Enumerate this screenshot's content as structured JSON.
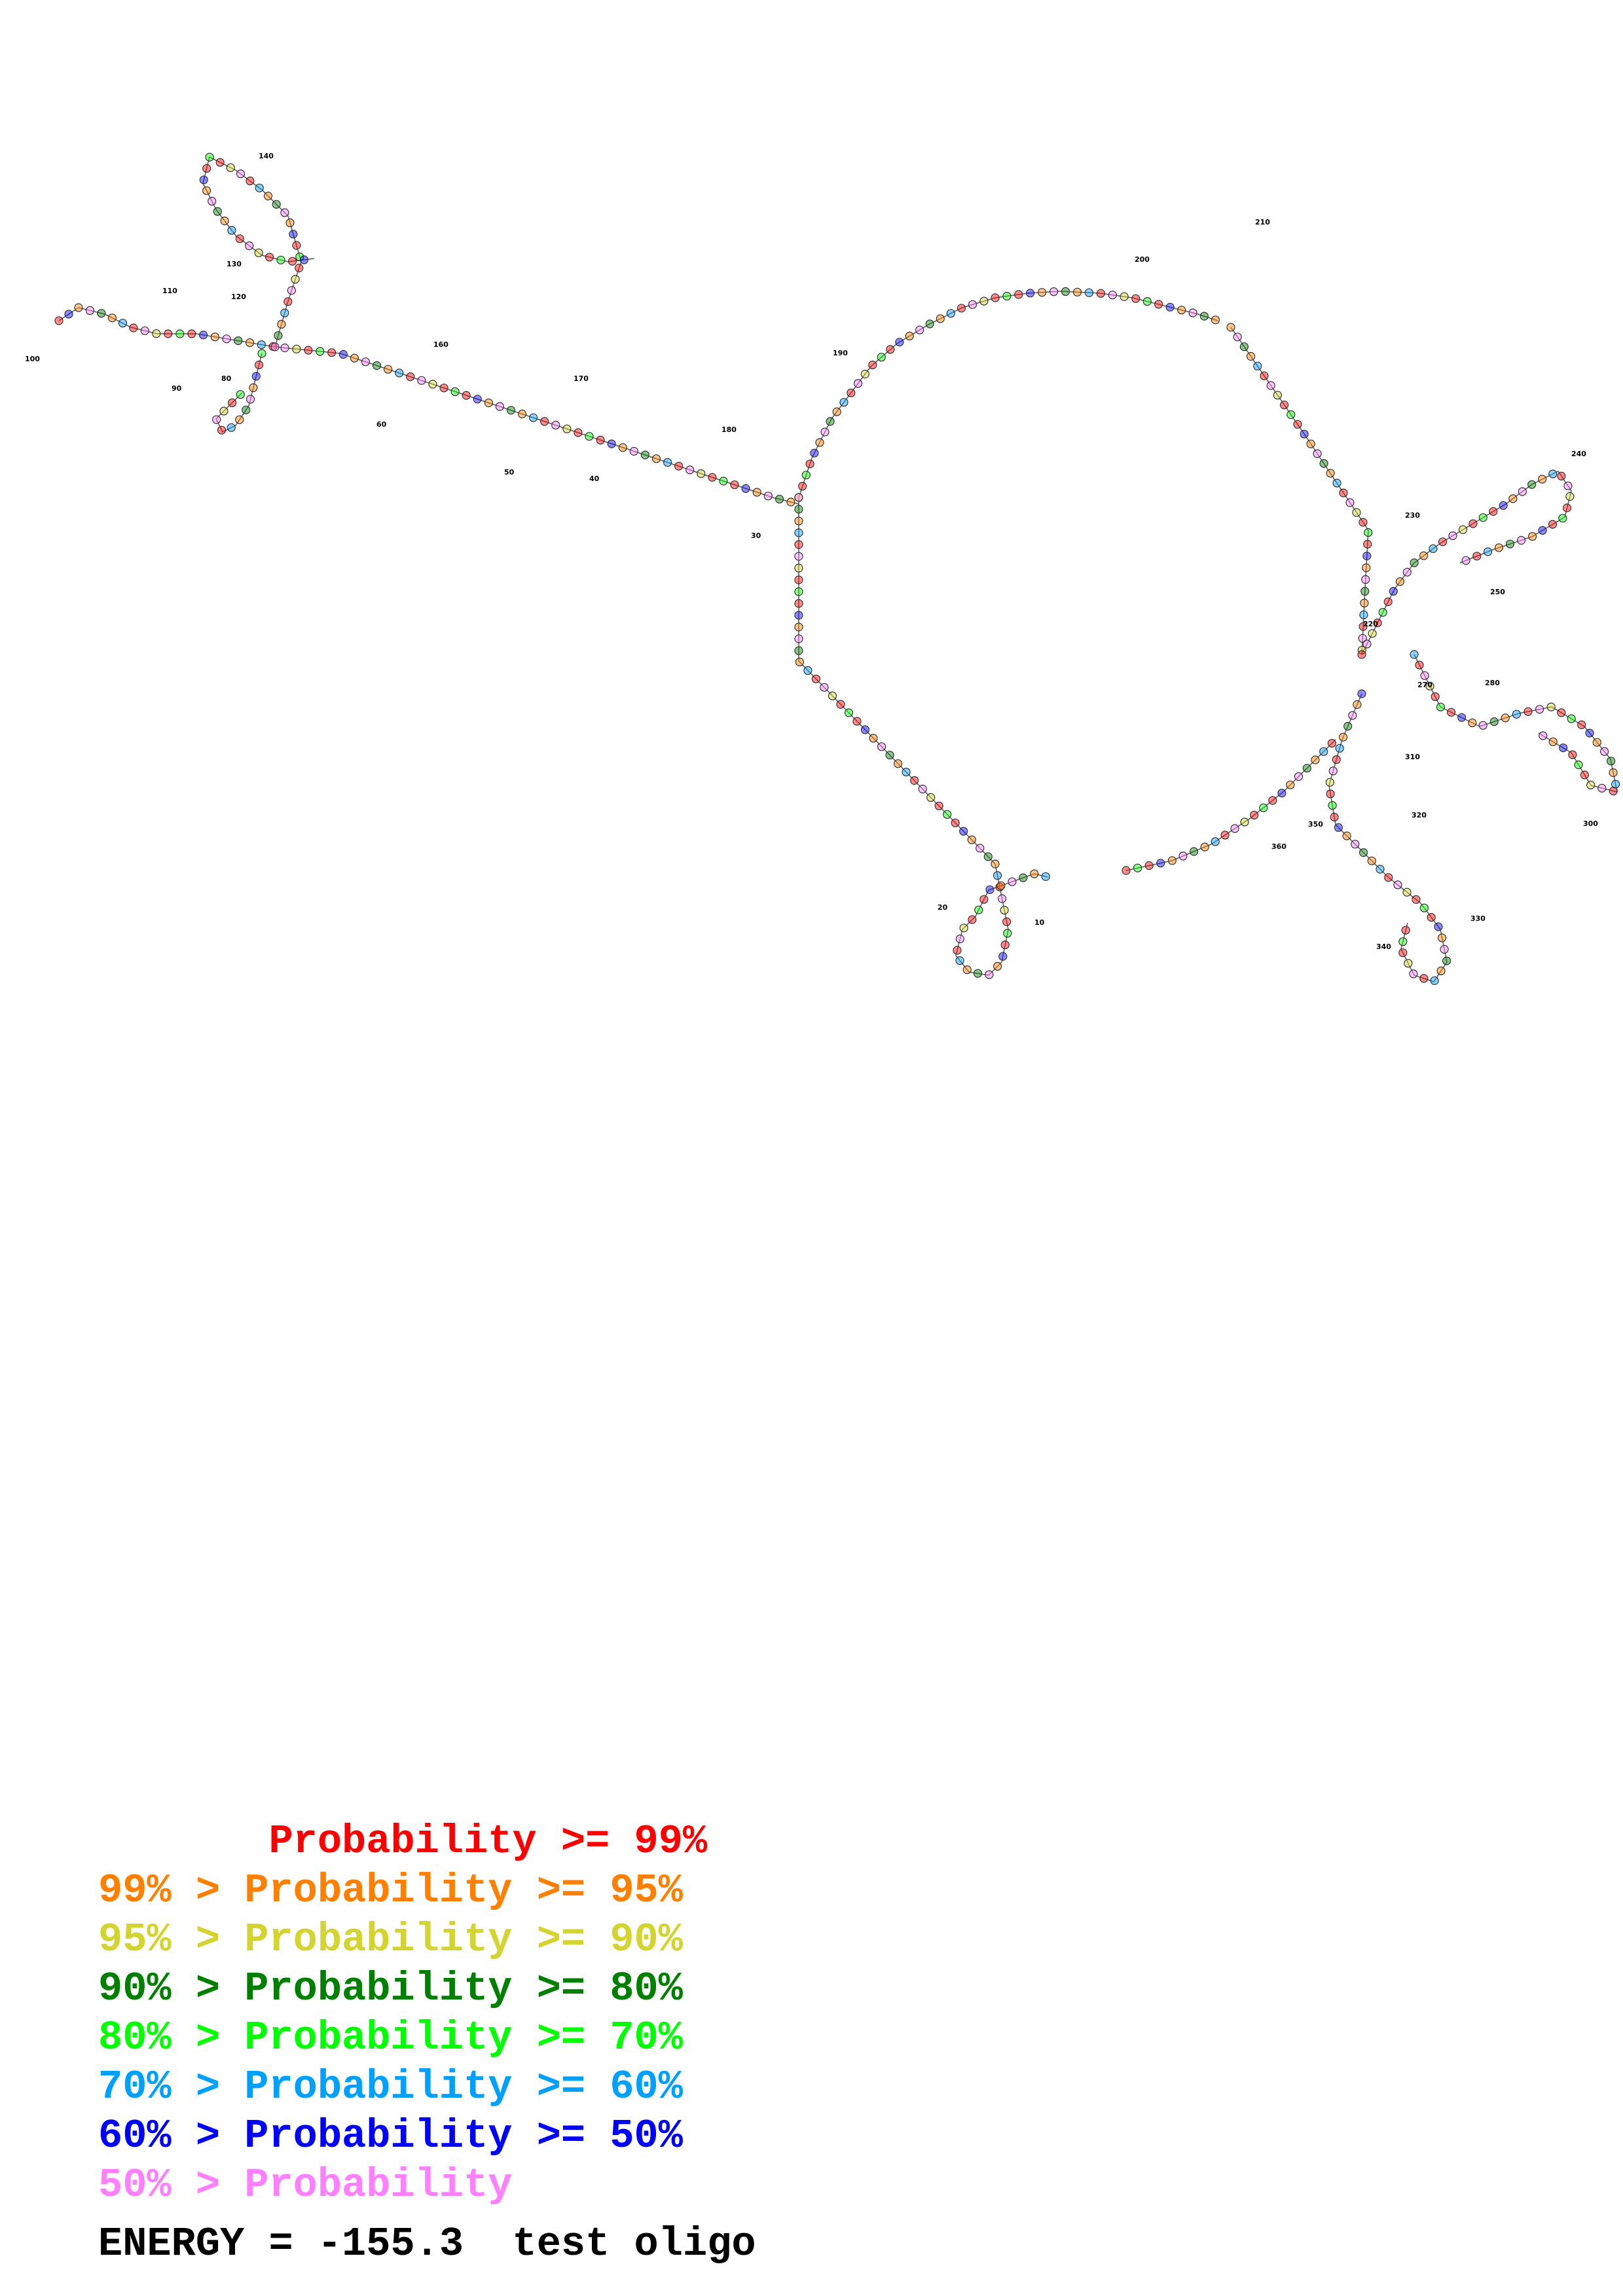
{
  "colors": {
    "p99": "#ff0000",
    "p95": "#ff8000",
    "p90": "#d4d430",
    "p80": "#008000",
    "p70": "#00ff00",
    "p60": "#00a0ff",
    "p50": "#0000ff",
    "plow": "#ff80ff"
  },
  "legend": [
    {
      "text": "       Probability >= 99%",
      "color_key": "p99"
    },
    {
      "text": "99% > Probability >= 95%",
      "color_key": "p95"
    },
    {
      "text": "95% > Probability >= 90%",
      "color_key": "p90"
    },
    {
      "text": "90% > Probability >= 80%",
      "color_key": "p80"
    },
    {
      "text": "80% > Probability >= 70%",
      "color_key": "p70"
    },
    {
      "text": "70% > Probability >= 60%",
      "color_key": "p60"
    },
    {
      "text": "60% > Probability >= 50%",
      "color_key": "p50"
    },
    {
      "text": "50% > Probability",
      "color_key": "plow"
    }
  ],
  "energy_line": "ENERGY = -155.3  test oligo",
  "position_labels": [
    "10",
    "20",
    "30",
    "40",
    "50",
    "60",
    "80",
    "90",
    "100",
    "110",
    "120",
    "130",
    "140",
    "160",
    "170",
    "180",
    "190",
    "200",
    "210",
    "220",
    "230",
    "240",
    "250",
    "270",
    "280",
    "300",
    "310",
    "320",
    "330",
    "340",
    "350",
    "360"
  ]
}
